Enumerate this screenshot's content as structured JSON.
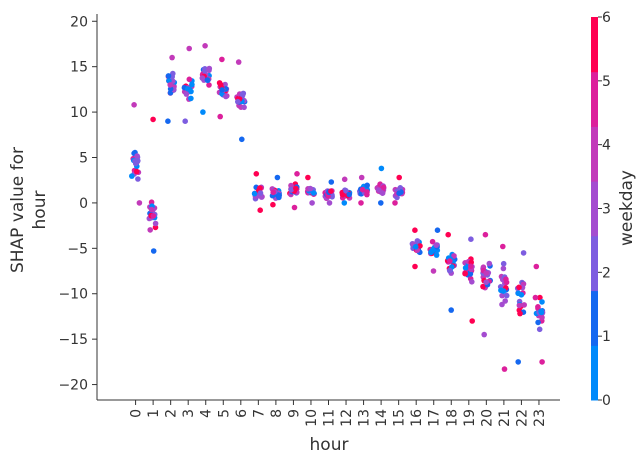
{
  "chart_data": {
    "type": "scatter",
    "title": "",
    "xlabel": "hour",
    "ylabel_line1": "SHAP value for",
    "ylabel_line2": "hour",
    "colorbar_label": "weekday",
    "colorbar_ticks": [
      "0",
      "1",
      "2",
      "3",
      "4",
      "5",
      "6"
    ],
    "colorbar_range": [
      0,
      6
    ],
    "colorbar_bands": [
      "#008afb",
      "#1568f0",
      "#7d5de0",
      "#a44cd0",
      "#c23aba",
      "#dc209c",
      "#ff0052"
    ],
    "xlim": [
      -2.2,
      24.2
    ],
    "ylim": [
      -21.7,
      20.8
    ],
    "x_ticks": [
      0,
      1,
      2,
      3,
      4,
      5,
      6,
      7,
      8,
      9,
      10,
      11,
      12,
      13,
      14,
      15,
      16,
      17,
      18,
      19,
      20,
      21,
      22,
      23
    ],
    "y_ticks": [
      20,
      15,
      10,
      5,
      0,
      -5,
      -10,
      -15,
      -20
    ],
    "grid": false,
    "jitter": 0.22,
    "per_hour_points": 20,
    "hour_stats": [
      {
        "hour": 0,
        "center": 4.0,
        "spread": 3.5,
        "min": 0.0,
        "max": 10.8
      },
      {
        "hour": 1,
        "center": -1.5,
        "spread": 2.5,
        "min": -5.3,
        "max": 9.2
      },
      {
        "hour": 2,
        "center": 13.0,
        "spread": 1.6,
        "min": 9.0,
        "max": 16.0
      },
      {
        "hour": 3,
        "center": 12.5,
        "spread": 1.6,
        "min": 9.0,
        "max": 17.0
      },
      {
        "hour": 4,
        "center": 14.0,
        "spread": 1.5,
        "min": 10.0,
        "max": 17.3
      },
      {
        "hour": 5,
        "center": 12.5,
        "spread": 1.4,
        "min": 9.5,
        "max": 15.8
      },
      {
        "hour": 6,
        "center": 11.0,
        "spread": 1.8,
        "min": 7.0,
        "max": 15.5
      },
      {
        "hour": 7,
        "center": 1.2,
        "spread": 1.0,
        "min": -0.8,
        "max": 3.2
      },
      {
        "hour": 8,
        "center": 1.2,
        "spread": 0.8,
        "min": -0.2,
        "max": 2.8
      },
      {
        "hour": 9,
        "center": 1.5,
        "spread": 0.9,
        "min": -0.5,
        "max": 3.2
      },
      {
        "hour": 10,
        "center": 1.2,
        "spread": 0.8,
        "min": 0.0,
        "max": 2.8
      },
      {
        "hour": 11,
        "center": 1.0,
        "spread": 0.7,
        "min": 0.0,
        "max": 2.3
      },
      {
        "hour": 12,
        "center": 1.0,
        "spread": 0.8,
        "min": 0.0,
        "max": 2.6
      },
      {
        "hour": 13,
        "center": 1.3,
        "spread": 0.8,
        "min": 0.0,
        "max": 2.8
      },
      {
        "hour": 14,
        "center": 1.5,
        "spread": 1.0,
        "min": 0.0,
        "max": 3.8
      },
      {
        "hour": 15,
        "center": 1.2,
        "spread": 0.7,
        "min": 0.0,
        "max": 2.8
      },
      {
        "hour": 16,
        "center": -4.8,
        "spread": 1.0,
        "min": -7.0,
        "max": -3.0
      },
      {
        "hour": 17,
        "center": -5.2,
        "spread": 1.2,
        "min": -7.5,
        "max": -3.0
      },
      {
        "hour": 18,
        "center": -6.5,
        "spread": 2.0,
        "min": -11.8,
        "max": -3.5
      },
      {
        "hour": 19,
        "center": -7.5,
        "spread": 2.5,
        "min": -13.0,
        "max": -4.0
      },
      {
        "hour": 20,
        "center": -8.0,
        "spread": 2.8,
        "min": -14.5,
        "max": -3.5
      },
      {
        "hour": 21,
        "center": -9.0,
        "spread": 3.2,
        "min": -18.3,
        "max": -4.8
      },
      {
        "hour": 22,
        "center": -10.5,
        "spread": 3.0,
        "min": -17.5,
        "max": -5.5
      },
      {
        "hour": 23,
        "center": -12.0,
        "spread": 2.8,
        "min": -17.5,
        "max": -7.0
      }
    ]
  }
}
